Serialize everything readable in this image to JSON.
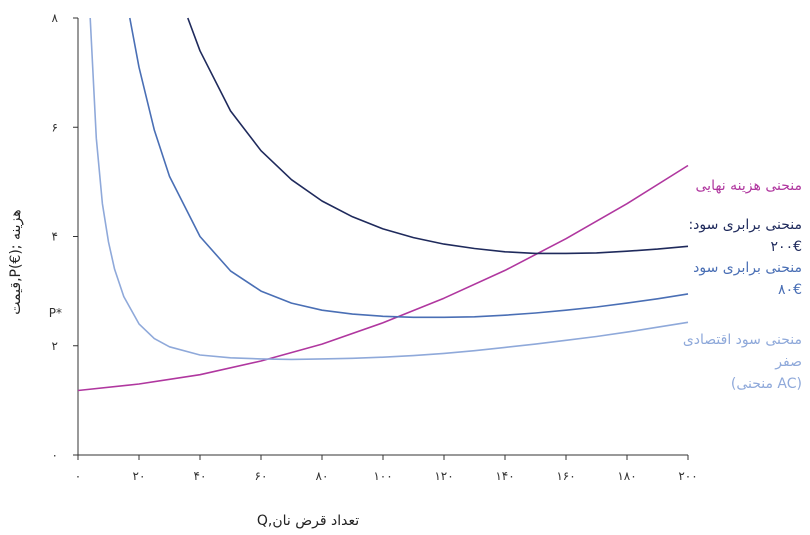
{
  "chart_data": {
    "type": "line",
    "xlabel": "Q,تعداد قرض نان",
    "ylabel": "قیمت,P(€); هزینه",
    "xlim": [
      0,
      200
    ],
    "ylim": [
      0,
      8
    ],
    "x_ticks": [
      0,
      20,
      40,
      60,
      80,
      100,
      120,
      140,
      160,
      180,
      200
    ],
    "x_tick_labels": [
      "۰",
      "۲۰",
      "۴۰",
      "۶۰",
      "۸۰",
      "۱۰۰",
      "۱۲۰",
      "۱۴۰",
      "۱۶۰",
      "۱۸۰",
      "۲۰۰"
    ],
    "y_ticks": [
      0,
      2,
      4,
      6,
      8
    ],
    "y_tick_labels": [
      "۰",
      "۲",
      "۴",
      "۶",
      "۸"
    ],
    "p_star": {
      "label": "P*",
      "value": 2.6
    },
    "grid": false,
    "series": [
      {
        "name": "منحنی هزینه نهایی",
        "color": "#b0379f",
        "x": [
          0,
          20,
          40,
          60,
          80,
          100,
          120,
          140,
          160,
          180,
          200
        ],
        "y": [
          1.18,
          1.3,
          1.47,
          1.72,
          2.03,
          2.42,
          2.87,
          3.38,
          3.96,
          4.6,
          5.3
        ]
      },
      {
        "name_lines": [
          ":منحنی برابری سود",
          "۲۰۰€"
        ],
        "color": "#1f2a5c",
        "x": [
          36,
          40,
          50,
          60,
          70,
          80,
          90,
          100,
          110,
          120,
          130,
          140,
          150,
          160,
          170,
          180,
          190,
          200
        ],
        "y": [
          8.0,
          7.4,
          6.3,
          5.57,
          5.04,
          4.65,
          4.36,
          4.14,
          3.98,
          3.86,
          3.78,
          3.72,
          3.69,
          3.69,
          3.7,
          3.73,
          3.77,
          3.82
        ]
      },
      {
        "name_lines": [
          "منحنی برابری سود",
          "۸۰€"
        ],
        "color": "#4a6fb5",
        "x": [
          17,
          20,
          25,
          30,
          40,
          50,
          60,
          70,
          80,
          90,
          100,
          110,
          120,
          130,
          140,
          150,
          160,
          170,
          180,
          190,
          200
        ],
        "y": [
          8.0,
          7.1,
          5.95,
          5.1,
          4.0,
          3.37,
          3.0,
          2.78,
          2.65,
          2.58,
          2.54,
          2.52,
          2.52,
          2.53,
          2.56,
          2.6,
          2.65,
          2.71,
          2.78,
          2.86,
          2.95
        ]
      },
      {
        "name_lines": [
          "منحنی سود اقتصادی",
          "صفر",
          "(منحنی AC)"
        ],
        "color": "#8fa9da",
        "x": [
          4,
          6,
          8,
          10,
          12,
          15,
          20,
          25,
          30,
          40,
          50,
          60,
          70,
          80,
          90,
          100,
          110,
          120,
          130,
          140,
          150,
          160,
          170,
          180,
          190,
          200
        ],
        "y": [
          8.0,
          5.8,
          4.6,
          3.9,
          3.4,
          2.9,
          2.4,
          2.13,
          1.98,
          1.83,
          1.78,
          1.76,
          1.75,
          1.76,
          1.77,
          1.79,
          1.82,
          1.86,
          1.91,
          1.97,
          2.03,
          2.1,
          2.17,
          2.25,
          2.34,
          2.43
        ]
      }
    ]
  }
}
